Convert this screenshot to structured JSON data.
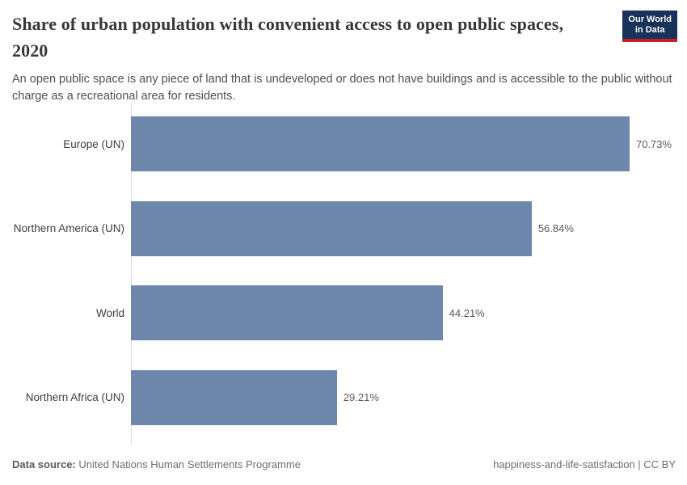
{
  "header": {
    "title": "Share of urban population with convenient access to open public spaces, 2020",
    "subtitle": "An open public space is any piece of land that is undeveloped or does not have buildings and is accessible to the public without charge as a recreational area for residents.",
    "logo": {
      "line1": "Our World",
      "line2": "in Data",
      "bg_color": "#18325a",
      "accent_color": "#bf2027"
    }
  },
  "chart_data": {
    "type": "bar",
    "orientation": "horizontal",
    "title": "Share of urban population with convenient access to open public spaces, 2020",
    "xlabel": "",
    "ylabel": "",
    "xlim": [
      0,
      77.5
    ],
    "grid": false,
    "legend": false,
    "bar_color": "#6e87ad",
    "categories": [
      "Europe (UN)",
      "Northern America (UN)",
      "World",
      "Northern Africa (UN)"
    ],
    "values": [
      70.73,
      56.84,
      44.21,
      29.21
    ],
    "value_labels": [
      "70.73%",
      "56.84%",
      "44.21%",
      "29.21%"
    ]
  },
  "footer": {
    "data_source_label": "Data source:",
    "data_source_value": " United Nations Human Settlements Programme",
    "right_text": "happiness-and-life-satisfaction | CC BY"
  }
}
